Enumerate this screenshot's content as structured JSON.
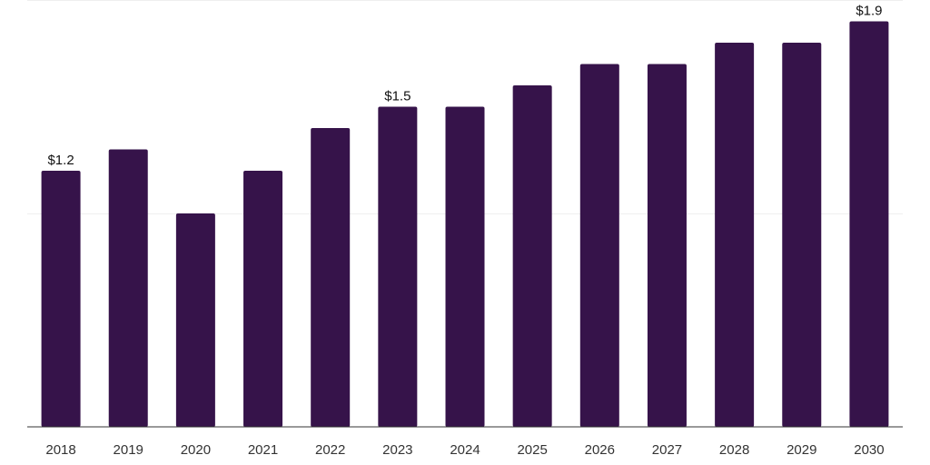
{
  "chart_data": {
    "type": "bar",
    "categories": [
      "2018",
      "2019",
      "2020",
      "2021",
      "2022",
      "2023",
      "2024",
      "2025",
      "2026",
      "2027",
      "2028",
      "2029",
      "2030"
    ],
    "values": [
      1.2,
      1.3,
      1.0,
      1.2,
      1.4,
      1.5,
      1.5,
      1.6,
      1.7,
      1.7,
      1.8,
      1.8,
      1.9
    ],
    "data_labels": [
      {
        "index": 0,
        "text": "$1.2"
      },
      {
        "index": 5,
        "text": "$1.5"
      },
      {
        "index": 12,
        "text": "$1.9"
      }
    ],
    "title": "",
    "xlabel": "",
    "ylabel": "",
    "ylim": [
      0,
      2
    ],
    "grid": true,
    "bar_color": "#36134a"
  }
}
